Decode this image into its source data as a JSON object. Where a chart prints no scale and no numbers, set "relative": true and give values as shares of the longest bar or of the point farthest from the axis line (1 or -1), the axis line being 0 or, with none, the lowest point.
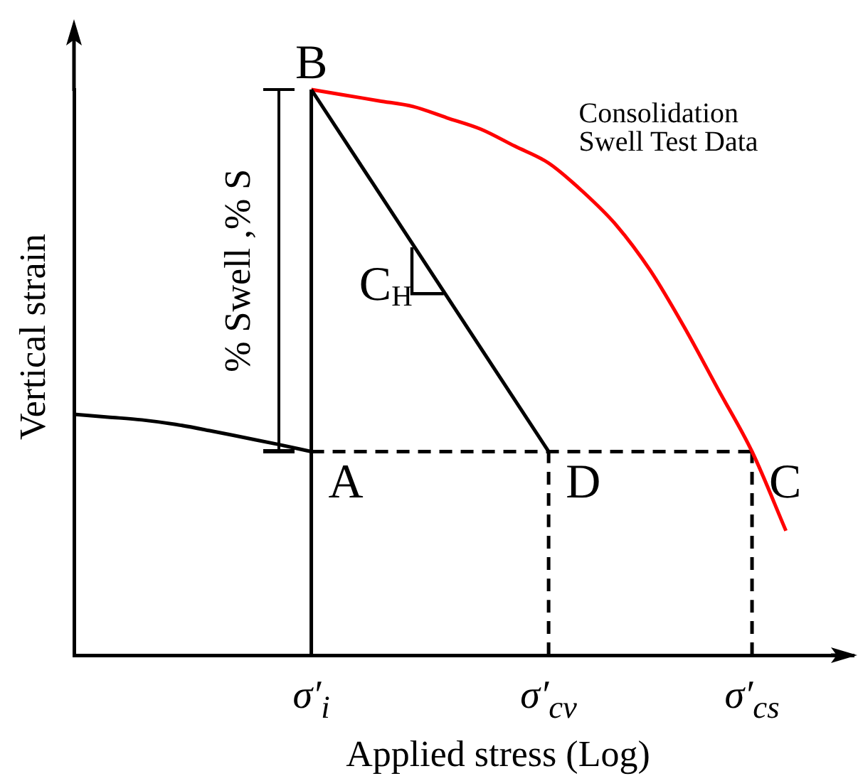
{
  "chart_data": {
    "type": "line",
    "relative": true,
    "xlabel": "Applied stress (Log)",
    "ylabel": "Vertical strain",
    "categories": [
      null,
      null,
      null,
      null,
      null,
      null,
      null,
      "σ′$_{i}$",
      null,
      null,
      null,
      null,
      null,
      null,
      "σ′$_{cv}$",
      null,
      null,
      null,
      null,
      null,
      "σ′$_{cs}$",
      null,
      null,
      null
    ],
    "marker": "none",
    "series": [
      {
        "color": "#000000",
        "values": [
          0.426,
          0.421,
          0.416,
          0.408,
          0.397,
          0.385,
          0.373,
          0.36,
          null,
          null,
          null,
          null,
          null,
          null,
          null,
          null,
          null,
          null,
          null,
          null,
          null,
          null,
          null,
          null
        ]
      },
      {
        "color": "#000000",
        "x": [
          "σ′$_{i}$",
          "σ′$_{i}$"
        ],
        "values": [
          0,
          1
        ]
      },
      {
        "color": "#000000",
        "x": [
          "σ′$_{i}$",
          "σ′$_{cv}$"
        ],
        "values": [
          1,
          0.36
        ]
      },
      {
        "name": "Consolidation Swell Test Data",
        "color": "#ff0000",
        "values": [
          null,
          null,
          null,
          null,
          null,
          null,
          null,
          1,
          0.99,
          0.98,
          0.97,
          0.95,
          0.93,
          0.9,
          0.87,
          0.82,
          0.76,
          0.68,
          0.58,
          0.47,
          0.36,
          0.22,
          null,
          null
        ]
      },
      {
        "color": "#000000",
        "line_style": "dashed",
        "x": [
          "σ′$_{i}$",
          "σ′$_{cs}$"
        ],
        "values": [
          0.36,
          0.36
        ]
      },
      {
        "color": "#000000",
        "line_style": "dashed",
        "x": [
          "σ′$_{cv}$",
          "σ′$_{cv}$"
        ],
        "values": [
          0,
          0.36
        ]
      },
      {
        "color": "#000000",
        "line_style": "dashed",
        "x": [
          "σ′$_{cs}$",
          "σ′$_{cs}$"
        ],
        "values": [
          0,
          0.36
        ]
      }
    ],
    "annotations": [
      {
        "text": "B",
        "x": "σ′$_{i}$",
        "y": 1
      },
      {
        "text": "A",
        "x": "σ′$_{i}$",
        "y": 0.36
      },
      {
        "text": "D",
        "x": "σ′$_{cv}$",
        "y": 0.36
      },
      {
        "text": "C",
        "x": "σ′$_{cs}$",
        "y": 0.36
      },
      "C$_{H}$",
      "% Swell ,% S"
    ]
  }
}
